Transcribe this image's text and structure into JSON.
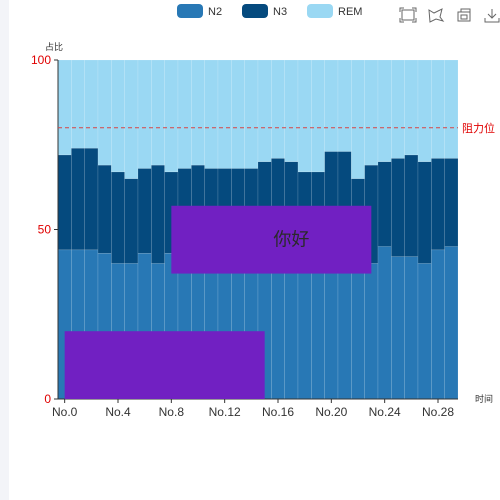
{
  "colors": {
    "N2": "#2878b5",
    "N3": "#054a7e",
    "REM": "#9ad8f3",
    "overlay": "#7120c2",
    "axis_red": "#e00000",
    "markline": "#d84444"
  },
  "toolbox": [
    "zoom-icon",
    "lasso-icon",
    "restore-icon",
    "save-icon"
  ],
  "chart_data": {
    "type": "bar",
    "stacked": true,
    "ylabel": "占比",
    "xlabel": "时间",
    "ylim": [
      0,
      100
    ],
    "yticks": [
      "0",
      "50",
      "100"
    ],
    "xtick_labels": [
      "No.0",
      "No.4",
      "No.8",
      "No.12",
      "No.16",
      "No.20",
      "No.24",
      "No.28"
    ],
    "categories": [
      "No.0",
      "No.1",
      "No.2",
      "No.3",
      "No.4",
      "No.5",
      "No.6",
      "No.7",
      "No.8",
      "No.9",
      "No.10",
      "No.11",
      "No.12",
      "No.13",
      "No.14",
      "No.15",
      "No.16",
      "No.17",
      "No.18",
      "No.19",
      "No.20",
      "No.21",
      "No.22",
      "No.23",
      "No.24",
      "No.25",
      "No.26",
      "No.27",
      "No.28",
      "No.29"
    ],
    "series": [
      {
        "name": "N2",
        "values": [
          44,
          44,
          44,
          43,
          40,
          40,
          43,
          40,
          43,
          43,
          43,
          43,
          43,
          43,
          43,
          43,
          43,
          43,
          43,
          43,
          43,
          43,
          43,
          40,
          45,
          42,
          42,
          40,
          44,
          45
        ]
      },
      {
        "name": "N3",
        "values": [
          28,
          30,
          30,
          26,
          27,
          25,
          25,
          29,
          24,
          25,
          26,
          25,
          25,
          25,
          25,
          27,
          28,
          27,
          24,
          24,
          30,
          30,
          22,
          29,
          25,
          29,
          30,
          30,
          27,
          26
        ]
      },
      {
        "name": "REM",
        "values": [
          28,
          26,
          26,
          31,
          33,
          35,
          32,
          31,
          33,
          32,
          31,
          32,
          32,
          32,
          32,
          30,
          29,
          30,
          33,
          33,
          27,
          27,
          35,
          31,
          30,
          29,
          28,
          30,
          29,
          29
        ]
      }
    ],
    "markline": {
      "value": 80,
      "label": "阻力位"
    },
    "overlays": [
      {
        "text": "你好",
        "x_range": [
          8.5,
          23.5
        ],
        "y_range": [
          37,
          57
        ]
      },
      {
        "text": "",
        "x_range": [
          0.5,
          15.5
        ],
        "y_range": [
          0,
          20
        ]
      }
    ]
  }
}
